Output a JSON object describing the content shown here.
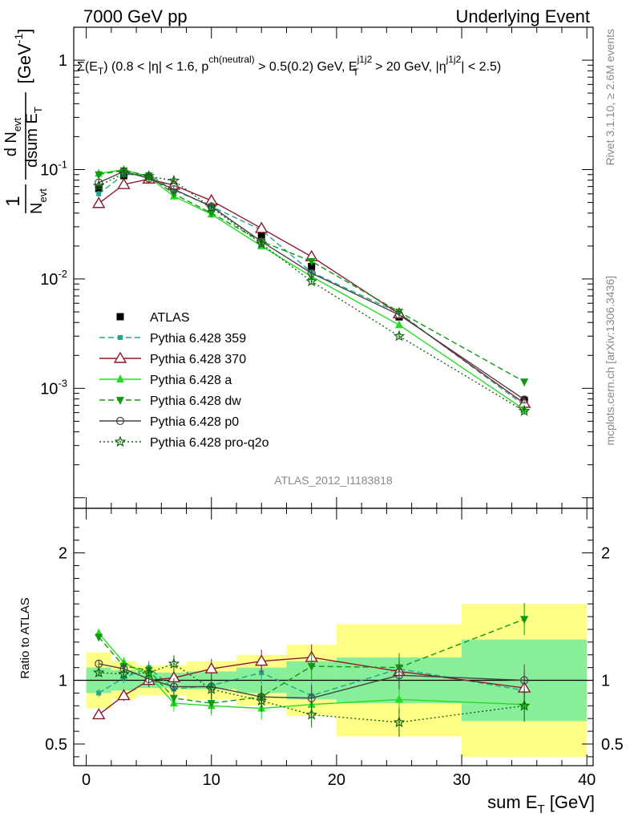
{
  "header": {
    "left": "7000 GeV pp",
    "right": "Underlying Event"
  },
  "annotation": {
    "cuts": "Σ(E_T) (0.8 < |η| < 1.6, p^ch(neutral) > 0.5(0.2) GeV, E_T^j1j2 > 20 GeV, |η^j1j2| < 2.5)",
    "analysis_id": "ATLAS_2012_I1183818"
  },
  "side_labels": {
    "rivet": "Rivet 3.1.10, ≥ 2.6M events",
    "mcplots": "mcplots.cern.ch [arXiv:1306.3436]"
  },
  "chart_data": [
    {
      "type": "line",
      "panel": "main",
      "ylabel": "1/N_evt dN_evt/dsum E_T [GeV^-1]",
      "yscale": "log",
      "xlim": [
        -1,
        40.5
      ],
      "ylim": [
        8e-05,
        2
      ],
      "ytick_labels": [
        "10^-3",
        "10^-2",
        "10^-1",
        "1"
      ],
      "legend_position": "left-middle",
      "x": [
        1,
        3,
        5,
        7,
        10,
        14,
        18,
        25,
        35
      ],
      "bin_edges": [
        0,
        2,
        4,
        6,
        8,
        12,
        16,
        20,
        30,
        40
      ],
      "series": [
        {
          "name": "ATLAS",
          "color": "#000000",
          "style": "data",
          "values": [
            0.067,
            0.088,
            0.082,
            0.07,
            0.048,
            0.025,
            0.013,
            0.0045,
            0.00078
          ]
        },
        {
          "name": "Pythia 6.428 359",
          "color": "#1aaa8c",
          "style": "dashed",
          "marker": "square",
          "values": [
            0.06,
            0.09,
            0.09,
            0.065,
            0.046,
            0.028,
            0.0115,
            0.0049,
            0.0007
          ]
        },
        {
          "name": "Pythia 6.428 370",
          "color": "#8b1a2e",
          "style": "solid",
          "marker": "open-triangle",
          "values": [
            0.049,
            0.073,
            0.082,
            0.072,
            0.052,
            0.029,
            0.016,
            0.0048,
            0.00073
          ]
        },
        {
          "name": "Pythia 6.428 a",
          "color": "#22dd22",
          "style": "solid",
          "marker": "filled-triangle",
          "values": [
            0.092,
            0.1,
            0.085,
            0.057,
            0.039,
            0.02,
            0.0105,
            0.0038,
            0.00064
          ]
        },
        {
          "name": "Pythia 6.428 dw",
          "color": "#119911",
          "style": "dashed",
          "marker": "filled-down-triangle",
          "values": [
            0.09,
            0.098,
            0.088,
            0.06,
            0.04,
            0.022,
            0.0145,
            0.005,
            0.00115
          ]
        },
        {
          "name": "Pythia 6.428 p0",
          "color": "#444444",
          "style": "solid",
          "marker": "open-circle",
          "values": [
            0.076,
            0.096,
            0.083,
            0.066,
            0.046,
            0.022,
            0.0113,
            0.0047,
            0.00079
          ]
        },
        {
          "name": "Pythia 6.428 pro-q2o",
          "color": "#116611",
          "style": "dotted",
          "marker": "open-star",
          "values": [
            0.071,
            0.092,
            0.087,
            0.079,
            0.045,
            0.021,
            0.0095,
            0.003,
            0.00062
          ]
        }
      ]
    },
    {
      "type": "line",
      "panel": "ratio",
      "ylabel": "Ratio to ATLAS",
      "xlabel": "sum E_T [GeV]",
      "xlim": [
        -1,
        40.5
      ],
      "ylim": [
        0.33,
        2.35
      ],
      "ytick_labels": [
        "0.5",
        "1",
        "2"
      ],
      "xtick_labels": [
        "0",
        "10",
        "20",
        "30",
        "40"
      ],
      "x": [
        1,
        3,
        5,
        7,
        10,
        14,
        18,
        25,
        35
      ],
      "bin_edges": [
        0,
        2,
        4,
        6,
        8,
        12,
        16,
        20,
        30,
        40
      ],
      "band_inner": [
        [
          0.9,
          1.1
        ],
        [
          0.92,
          1.08
        ],
        [
          0.94,
          1.06
        ],
        [
          0.94,
          1.06
        ],
        [
          0.93,
          1.07
        ],
        [
          0.9,
          1.1
        ],
        [
          0.85,
          1.15
        ],
        [
          0.82,
          1.18
        ],
        [
          0.68,
          1.32
        ]
      ],
      "band_outer": [
        [
          0.78,
          1.22
        ],
        [
          0.85,
          1.15
        ],
        [
          0.88,
          1.12
        ],
        [
          0.88,
          1.12
        ],
        [
          0.85,
          1.15
        ],
        [
          0.8,
          1.2
        ],
        [
          0.72,
          1.28
        ],
        [
          0.56,
          1.44
        ],
        [
          0.4,
          1.6
        ]
      ],
      "series": [
        {
          "name": "Pythia 6.428 359",
          "values": [
            0.9,
            1.02,
            1.1,
            0.93,
            0.96,
            1.06,
            0.88,
            1.09,
            0.92
          ]
        },
        {
          "name": "Pythia 6.428 370",
          "values": [
            0.73,
            0.88,
            1.0,
            1.02,
            1.09,
            1.15,
            1.18,
            1.07,
            0.94
          ]
        },
        {
          "name": "Pythia 6.428 a",
          "values": [
            1.37,
            1.14,
            1.04,
            0.82,
            0.8,
            0.78,
            0.81,
            0.85,
            0.81
          ]
        },
        {
          "name": "Pythia 6.428 dw",
          "values": [
            1.34,
            1.11,
            1.08,
            0.86,
            0.82,
            0.87,
            1.11,
            1.1,
            1.48
          ]
        },
        {
          "name": "Pythia 6.428 p0",
          "values": [
            1.13,
            1.09,
            1.01,
            0.95,
            0.95,
            0.87,
            0.86,
            1.04,
            1.0
          ]
        },
        {
          "name": "Pythia 6.428 pro-q2o",
          "values": [
            1.06,
            1.05,
            1.06,
            1.13,
            0.93,
            0.84,
            0.73,
            0.67,
            0.8
          ]
        }
      ]
    }
  ]
}
